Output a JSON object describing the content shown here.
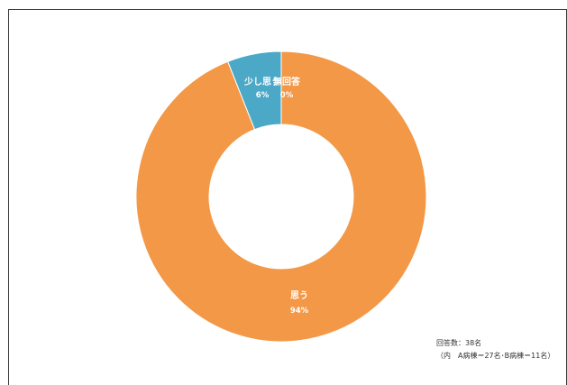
{
  "chart_data": {
    "type": "pie",
    "donut": true,
    "categories": [
      "思う",
      "少し思う",
      "無回答"
    ],
    "values": [
      94,
      6,
      0
    ],
    "labels": [
      "94%",
      "6%",
      "0%"
    ],
    "colors": [
      "#f39847",
      "#4ba8c6",
      "#4ba8c6"
    ],
    "legend": "none"
  },
  "notes": {
    "respondents": "回答数：38名",
    "breakdown": "（内　A病棟＝27名･B病棟＝11名）"
  }
}
